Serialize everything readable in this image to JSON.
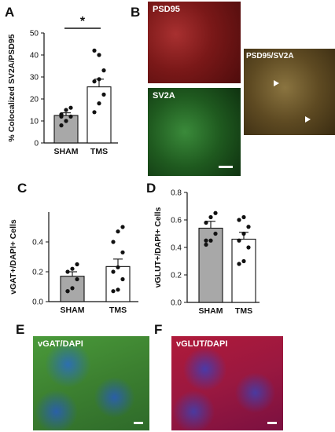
{
  "panel_letters": {
    "A": "A",
    "B": "B",
    "C": "C",
    "D": "D",
    "E": "E",
    "F": "F"
  },
  "micrographs": {
    "psd95": "PSD95",
    "sv2a": "SV2A",
    "merge": "PSD95/SV2A",
    "vgat": "vGAT/DAPI",
    "vglut": "vGLUT/DAPI"
  },
  "colors": {
    "sham_bar": "#a8a8a8",
    "tms_bar": "#ffffff",
    "axis": "#111111"
  },
  "chart_data": [
    {
      "id": "A",
      "type": "bar",
      "title": "",
      "ylabel": "% Colocalized SV2A/PSD95",
      "xlabel": "",
      "categories": [
        "SHAM",
        "TMS"
      ],
      "values": [
        12.5,
        25.5
      ],
      "sem": [
        1.2,
        3.5
      ],
      "ylim": [
        0,
        50
      ],
      "yticks": [
        "0",
        "10",
        "20",
        "30",
        "40",
        "50"
      ],
      "yticks_num": [
        0,
        10,
        20,
        30,
        40,
        50
      ],
      "points": [
        [
          8,
          10,
          12,
          13,
          15,
          16,
          12
        ],
        [
          14,
          18,
          22,
          28,
          29,
          33,
          42,
          40
        ]
      ],
      "significance": "*",
      "grid": false
    },
    {
      "id": "C",
      "type": "bar",
      "title": "",
      "ylabel": "vGAT+/DAPI+ Cells",
      "xlabel": "",
      "categories": [
        "SHAM",
        "TMS"
      ],
      "values": [
        0.17,
        0.235
      ],
      "sem": [
        0.03,
        0.05
      ],
      "ylim": [
        0,
        0.6
      ],
      "yticks": [
        "0.0",
        "0.2",
        "0.4"
      ],
      "yticks_num": [
        0,
        0.2,
        0.4
      ],
      "points": [
        [
          0.07,
          0.09,
          0.15,
          0.2,
          0.22,
          0.25,
          0.07
        ],
        [
          0.07,
          0.08,
          0.15,
          0.2,
          0.23,
          0.33,
          0.4,
          0.47,
          0.5
        ]
      ],
      "grid": false
    },
    {
      "id": "D",
      "type": "bar",
      "title": "",
      "ylabel": "vGLUT+/DAPI+ Cells",
      "xlabel": "",
      "categories": [
        "SHAM",
        "TMS"
      ],
      "values": [
        0.54,
        0.46
      ],
      "sem": [
        0.05,
        0.05
      ],
      "ylim": [
        0,
        0.8
      ],
      "yticks": [
        "0.0",
        "0.2",
        "0.4",
        "0.6",
        "0.8"
      ],
      "yticks_num": [
        0,
        0.2,
        0.4,
        0.6,
        0.8
      ],
      "points": [
        [
          0.42,
          0.45,
          0.5,
          0.58,
          0.62,
          0.65,
          0.45
        ],
        [
          0.28,
          0.3,
          0.4,
          0.45,
          0.5,
          0.55,
          0.6,
          0.62
        ]
      ],
      "grid": false
    }
  ]
}
